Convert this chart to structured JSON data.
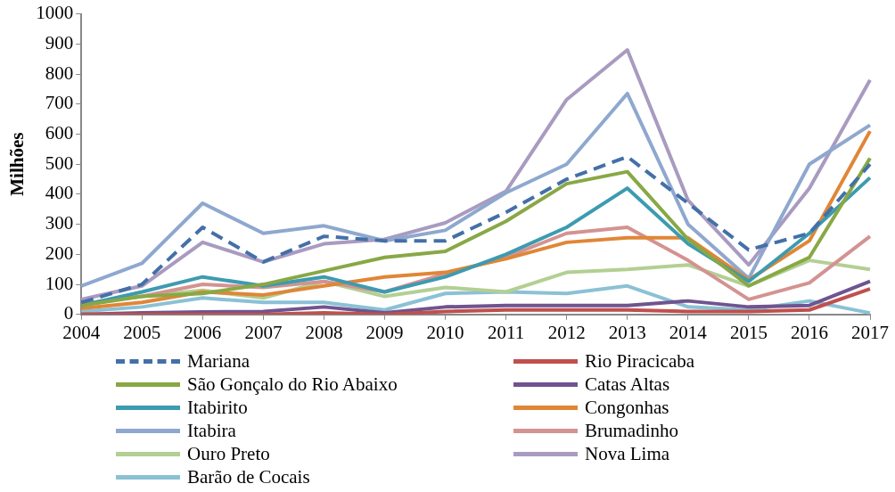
{
  "chart_data": {
    "type": "line",
    "ylabel": "Milhões",
    "categories": [
      "2004",
      "2005",
      "2006",
      "2007",
      "2008",
      "2009",
      "2010",
      "2011",
      "2012",
      "2013",
      "2014",
      "2015",
      "2016",
      "2017"
    ],
    "ylim": [
      0,
      1000
    ],
    "yticks": [
      0,
      100,
      200,
      300,
      400,
      500,
      600,
      700,
      800,
      900,
      1000
    ],
    "grid": false,
    "legend": "bottom",
    "marker": "none",
    "series": [
      {
        "name": "Mariana",
        "color": "#4470a8",
        "line_style": "dashed",
        "values": [
          40,
          100,
          290,
          175,
          260,
          245,
          245,
          340,
          450,
          525,
          370,
          215,
          270,
          500
        ]
      },
      {
        "name": "Rio Piracicaba",
        "color": "#c0504d",
        "values": [
          0,
          0,
          0,
          0,
          5,
          0,
          10,
          15,
          15,
          15,
          10,
          10,
          15,
          85
        ]
      },
      {
        "name": "São Gonçalo do Rio Abaixo",
        "color": "#88a845",
        "values": [
          30,
          60,
          70,
          100,
          145,
          190,
          210,
          310,
          435,
          475,
          250,
          95,
          190,
          520
        ]
      },
      {
        "name": "Catas Altas",
        "color": "#6f5490",
        "values": [
          0,
          5,
          8,
          10,
          25,
          5,
          25,
          30,
          30,
          30,
          45,
          25,
          30,
          110
        ]
      },
      {
        "name": "Itabirito",
        "color": "#3d9bb0",
        "values": [
          30,
          75,
          125,
          95,
          125,
          75,
          125,
          200,
          290,
          420,
          235,
          110,
          270,
          455
        ]
      },
      {
        "name": "Congonhas",
        "color": "#e08637",
        "values": [
          20,
          40,
          75,
          65,
          95,
          125,
          140,
          185,
          240,
          255,
          255,
          115,
          245,
          610
        ]
      },
      {
        "name": "Itabira",
        "color": "#8ea8cf",
        "values": [
          95,
          170,
          370,
          270,
          295,
          245,
          280,
          405,
          500,
          735,
          300,
          120,
          500,
          630
        ]
      },
      {
        "name": "Brumadinho",
        "color": "#d39391",
        "values": [
          35,
          60,
          100,
          90,
          110,
          75,
          135,
          190,
          270,
          290,
          180,
          50,
          105,
          260
        ]
      },
      {
        "name": "Ouro Preto",
        "color": "#b3cf93",
        "values": [
          35,
          60,
          80,
          55,
          110,
          60,
          90,
          75,
          140,
          150,
          165,
          95,
          180,
          150
        ]
      },
      {
        "name": "Nova Lima",
        "color": "#a99bc0",
        "values": [
          50,
          95,
          240,
          175,
          235,
          250,
          305,
          410,
          715,
          880,
          380,
          165,
          420,
          780
        ]
      },
      {
        "name": "Barão de Cocais",
        "color": "#8bc1d5",
        "values": [
          10,
          25,
          55,
          40,
          40,
          15,
          70,
          75,
          70,
          95,
          25,
          15,
          45,
          5
        ]
      }
    ]
  }
}
